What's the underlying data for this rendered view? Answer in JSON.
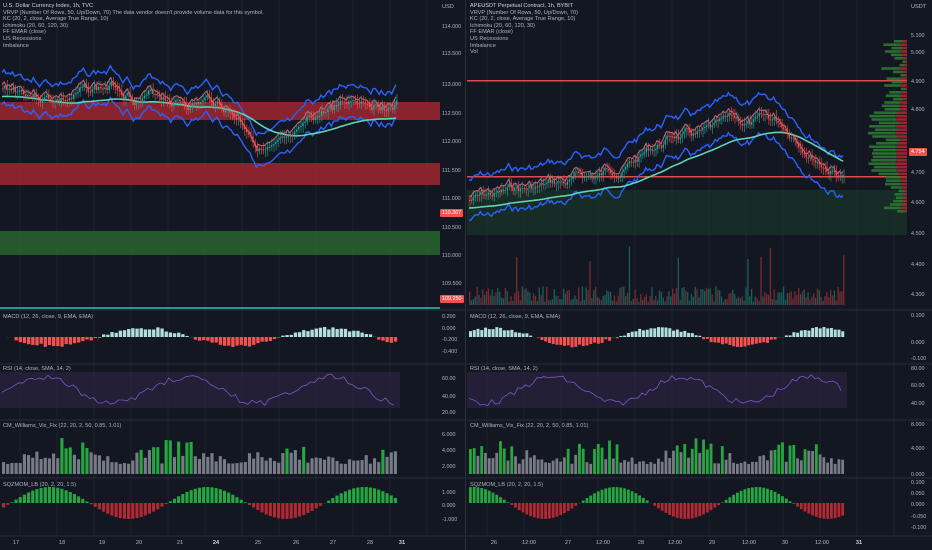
{
  "colors": {
    "background": "#131722",
    "grid": "#1e222d",
    "up": "#26a69a",
    "down": "#ef5350",
    "band": "#2962ff",
    "ema": "#2ebd85",
    "text": "#b2b5be",
    "rsi_fill": "#2a2340"
  },
  "left": {
    "title": "U.S. Dollar Currency Index, 1h, TVC",
    "overlays": [
      "VRVP (Number Of Rows, 50, Up/Down, 70)  The data vendor doesn't provide volume data for this symbol.",
      "KC (20, 2, close, Average True Range, 10)",
      "Ichimoku (20, 60, 120, 30)",
      "FF EMAR (close)",
      "US Recessions",
      "Imbalance"
    ],
    "unit": "USD",
    "price_ticks": [
      "114.000",
      "113.500",
      "113.000",
      "112.500",
      "112.000",
      "111.500",
      "111.000",
      "110.500",
      "110.000",
      "109.500"
    ],
    "last_price_tag": "110.367",
    "low_tag": "109.250",
    "x_labels": [
      "17",
      "18",
      "19",
      "20",
      "21",
      "24",
      "25",
      "26",
      "27",
      "28",
      "31"
    ],
    "macd_label": "MACD (12, 26, close, 9, EMA, EMA)",
    "macd_ticks": [
      "0.200",
      "0.000",
      "-0.200",
      "-0.400"
    ],
    "rsi_label": "RSI (14, close, SMA, 14, 2)",
    "rsi_ticks": [
      "60.00",
      "40.00",
      "20.00"
    ],
    "vix_label": "CM_Williams_Vix_Fix (22, 20, 2, 50, 0.85, 1.01)",
    "vix_ticks": [
      "6.000",
      "4.000",
      "2.000"
    ],
    "sqz_label": "SQZMOM_LB (20, 2, 20, 1.5)",
    "sqz_ticks": [
      "1.000",
      "0.000",
      "-1.000"
    ]
  },
  "right": {
    "title": "APEUSDT Perpetual Contract, 1h, BYBIT",
    "overlays": [
      "VRVP (Number Of Rows, 50, Up/Down, 70)",
      "KC (20, 2, close, Average True Range, 10)",
      "Ichimoku (20, 60, 120, 30)",
      "FF EMAR (close)",
      "US Recessions",
      "Imbalance",
      "Vol"
    ],
    "unit": "USDT",
    "price_ticks": [
      "5.100",
      "5.000",
      "4.900",
      "4.800",
      "4.700",
      "4.600",
      "4.500",
      "4.400",
      "4.300"
    ],
    "last_price_tag": "4.754",
    "x_labels": [
      "26",
      "12:00",
      "27",
      "12:00",
      "28",
      "12:00",
      "29",
      "12:00",
      "30",
      "12:00",
      "31"
    ],
    "macd_label": "MACD (12, 26, close, 9, EMA, EMA)",
    "macd_ticks": [
      "0.100",
      "0.000",
      "-0.100"
    ],
    "rsi_label": "RSI (14, close, SMA, 14, 2)",
    "rsi_ticks": [
      "80.00",
      "60.00",
      "40.00"
    ],
    "vix_label": "CM_Williams_Vix_Fix (22, 20, 2, 50, 0.85, 1.01)",
    "vix_ticks": [
      "8.000",
      "4.000",
      "0.000"
    ],
    "sqz_label": "SQZMOM_LB (20, 2, 20, 1.5)",
    "sqz_ticks": [
      "0.100",
      "0.050",
      "0.000",
      "-0.050",
      "-0.100"
    ]
  }
}
